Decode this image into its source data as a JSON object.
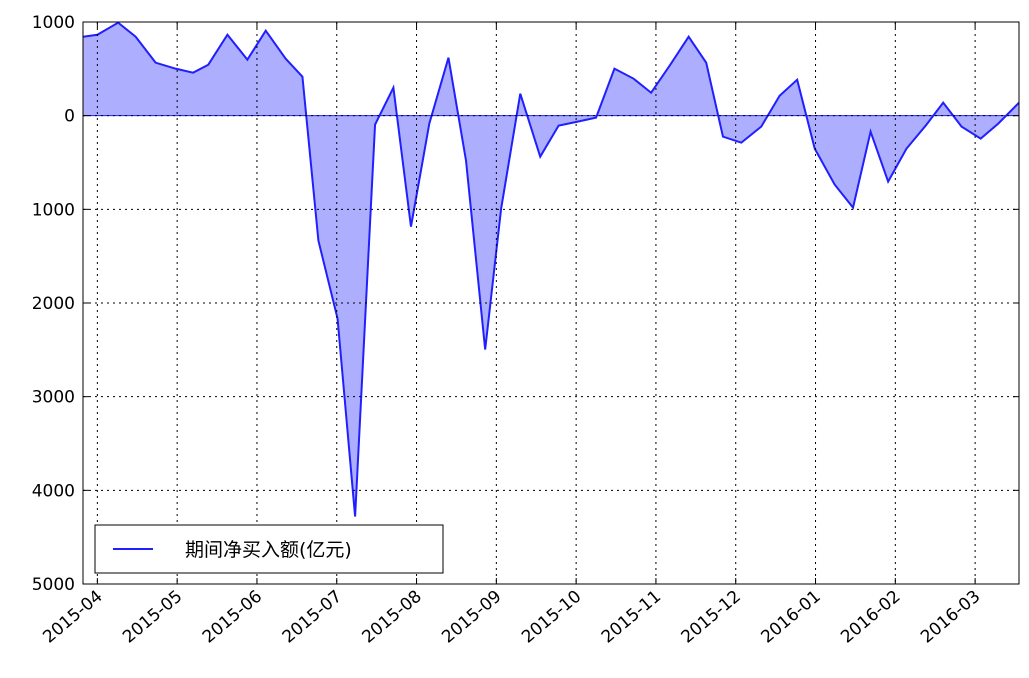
{
  "chart_data": {
    "type": "area",
    "series": [
      {
        "name": "期间净买入额(亿元)",
        "color": "#2020ff",
        "fill": "#aeaeff",
        "x": [
          -0.18,
          0,
          0.26,
          0.48,
          0.73,
          0.98,
          1.2,
          1.39,
          1.63,
          1.88,
          2.11,
          2.36,
          2.57,
          2.77,
          3.01,
          3.23,
          3.48,
          3.71,
          3.93,
          4.16,
          4.4,
          4.62,
          4.86,
          5.06,
          5.3,
          5.55,
          5.78,
          6.02,
          6.25,
          6.48,
          6.72,
          6.94,
          7.18,
          7.41,
          7.63,
          7.84,
          8.07,
          8.32,
          8.55,
          8.77,
          8.99,
          9.24,
          9.47,
          9.69,
          9.91,
          10.14,
          10.38,
          10.6,
          10.83,
          11.07,
          11.29,
          11.55
        ],
        "values": [
          843,
          864,
          993,
          843,
          566,
          502,
          459,
          544,
          864,
          598,
          907,
          608,
          416,
          -1334,
          -2166,
          -4280,
          -96,
          299,
          -1185,
          -85,
          619,
          -480,
          -2497,
          -993,
          235,
          -438,
          -107,
          -64,
          -21,
          502,
          395,
          245,
          544,
          843,
          566,
          -224,
          -288,
          -117,
          213,
          384,
          -352,
          -736,
          -982,
          -171,
          -704,
          -352,
          -107,
          139,
          -117,
          -245,
          -85,
          139
        ]
      }
    ],
    "xlim": [
      -0.18,
      11.55
    ],
    "xticks": [
      {
        "value": 0,
        "label": "2015-04"
      },
      {
        "value": 1,
        "label": "2015-05"
      },
      {
        "value": 2,
        "label": "2015-06"
      },
      {
        "value": 3,
        "label": "2015-07"
      },
      {
        "value": 4,
        "label": "2015-08"
      },
      {
        "value": 5,
        "label": "2015-09"
      },
      {
        "value": 6,
        "label": "2015-10"
      },
      {
        "value": 7,
        "label": "2015-11"
      },
      {
        "value": 8,
        "label": "2015-12"
      },
      {
        "value": 9,
        "label": "2016-01"
      },
      {
        "value": 10,
        "label": "2016-02"
      },
      {
        "value": 11,
        "label": "2016-03"
      }
    ],
    "ylim": [
      -5000,
      1000
    ],
    "yticks": [
      1000,
      0,
      {
        "value": -1000,
        "label": "1000"
      },
      {
        "value": -2000,
        "label": "2000"
      },
      {
        "value": -3000,
        "label": "3000"
      },
      {
        "value": -4000,
        "label": "4000"
      },
      {
        "value": -5000,
        "label": "5000"
      }
    ],
    "grid": true,
    "legend": "lower left"
  }
}
